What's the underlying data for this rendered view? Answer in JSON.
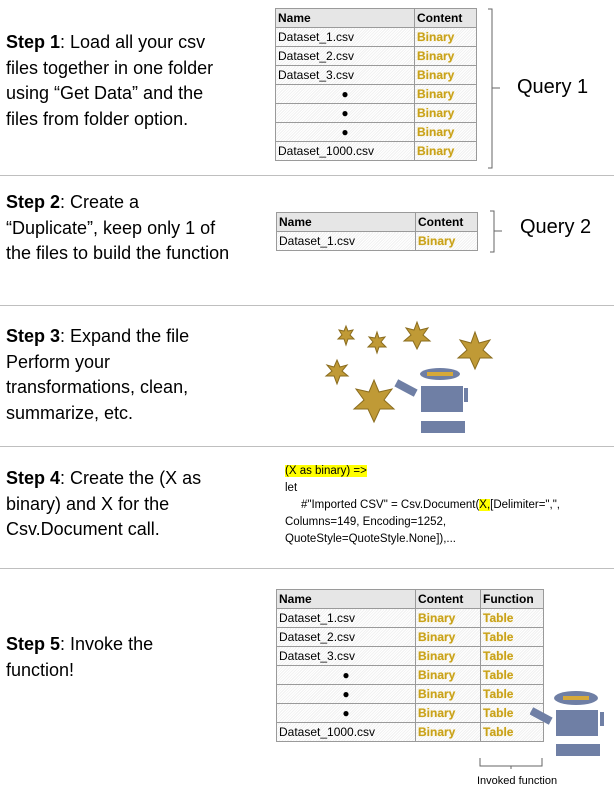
{
  "steps": [
    {
      "label": "Step 1",
      "text": ": Load all your csv files together in one folder using “Get Data” and the files from folder option."
    },
    {
      "label": "Step 2",
      "text": ": Create a “Duplicate”, keep only 1 of the files to build the function"
    },
    {
      "label": "Step 3",
      "text": ": Expand the file Perform your transformations, clean, summarize, etc."
    },
    {
      "label": "Step 4",
      "text": ": Create the (X as binary) and X for the Csv.Document call."
    },
    {
      "label": "Step 5",
      "text": ": Invoke the function!"
    }
  ],
  "query1": {
    "label": "Query 1",
    "headers": [
      "Name",
      "Content"
    ],
    "rows": [
      [
        "Dataset_1.csv",
        "Binary"
      ],
      [
        "Dataset_2.csv",
        "Binary"
      ],
      [
        "Dataset_3.csv",
        "Binary"
      ],
      [
        "●",
        "Binary"
      ],
      [
        "●",
        "Binary"
      ],
      [
        "●",
        "Binary"
      ],
      [
        "Dataset_1000.csv",
        "Binary"
      ]
    ]
  },
  "query2": {
    "label": "Query 2",
    "headers": [
      "Name",
      "Content"
    ],
    "rows": [
      [
        "Dataset_1.csv",
        "Binary"
      ]
    ]
  },
  "code": {
    "line1": "(X as binary) =>",
    "line2": "let",
    "line3a": "#\"Imported CSV\" = Csv.Document(",
    "line3x": "X,",
    "line3b": "[Delimiter=\",\",",
    "line4": "Columns=149, Encoding=1252,",
    "line5": "QuoteStyle=QuoteStyle.None]),..."
  },
  "query5": {
    "headers": [
      "Name",
      "Content",
      "Function"
    ],
    "rows": [
      [
        "Dataset_1.csv",
        "Binary",
        "Table"
      ],
      [
        "Dataset_2.csv",
        "Binary",
        "Table"
      ],
      [
        "Dataset_3.csv",
        "Binary",
        "Table"
      ],
      [
        "●",
        "Binary",
        "Table"
      ],
      [
        "●",
        "Binary",
        "Table"
      ],
      [
        "●",
        "Binary",
        "Table"
      ],
      [
        "Dataset_1000.csv",
        "Binary",
        "Table"
      ]
    ],
    "caption": "Invoked function"
  },
  "colors": {
    "gold": "#c9a21a",
    "star": "#c09a36",
    "robot": "#6f7fa5",
    "highlight": "#ffff00"
  },
  "icons": [
    "magic-stars-icon",
    "robot-icon"
  ]
}
